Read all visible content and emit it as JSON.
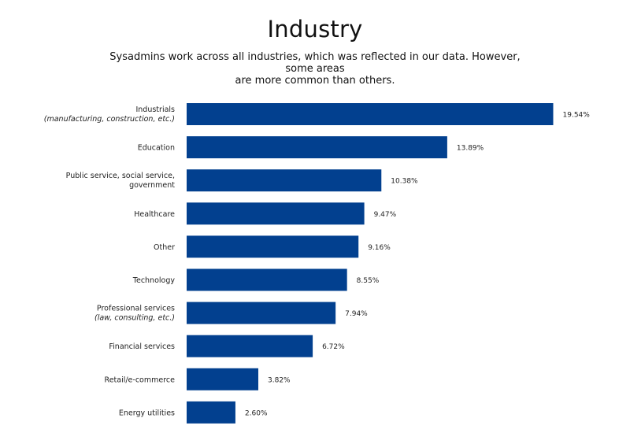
{
  "chart_data": {
    "type": "bar",
    "orientation": "horizontal",
    "title": "Industry",
    "subtitle_lines": [
      "Sysadmins work across all industries, which was reflected in our data. However, some areas",
      "are more common than others."
    ],
    "categories": [
      {
        "label": "Industrials",
        "sublabel": "(manufacturing, construction, etc.)"
      },
      {
        "label": "Education",
        "sublabel": ""
      },
      {
        "label": "Public service, social service,",
        "sublabel": "government"
      },
      {
        "label": "Healthcare",
        "sublabel": ""
      },
      {
        "label": "Other",
        "sublabel": ""
      },
      {
        "label": "Technology",
        "sublabel": ""
      },
      {
        "label": "Professional services",
        "sublabel": "(law, consulting, etc.)"
      },
      {
        "label": "Financial services",
        "sublabel": ""
      },
      {
        "label": "Retail/e-commerce",
        "sublabel": ""
      },
      {
        "label": "Energy utilities",
        "sublabel": ""
      }
    ],
    "sublabel_italic": [
      true,
      false,
      false,
      false,
      false,
      false,
      true,
      false,
      false,
      false
    ],
    "values": [
      19.54,
      13.89,
      10.38,
      9.47,
      9.16,
      8.55,
      7.94,
      6.72,
      3.82,
      2.6
    ],
    "value_labels": [
      "19.54%",
      "13.89%",
      "10.38%",
      "9.47%",
      "9.16%",
      "8.55%",
      "7.94%",
      "6.72%",
      "3.82%",
      "2.60%"
    ],
    "xlim": [
      0,
      20
    ],
    "bar_color": "#02408f"
  }
}
